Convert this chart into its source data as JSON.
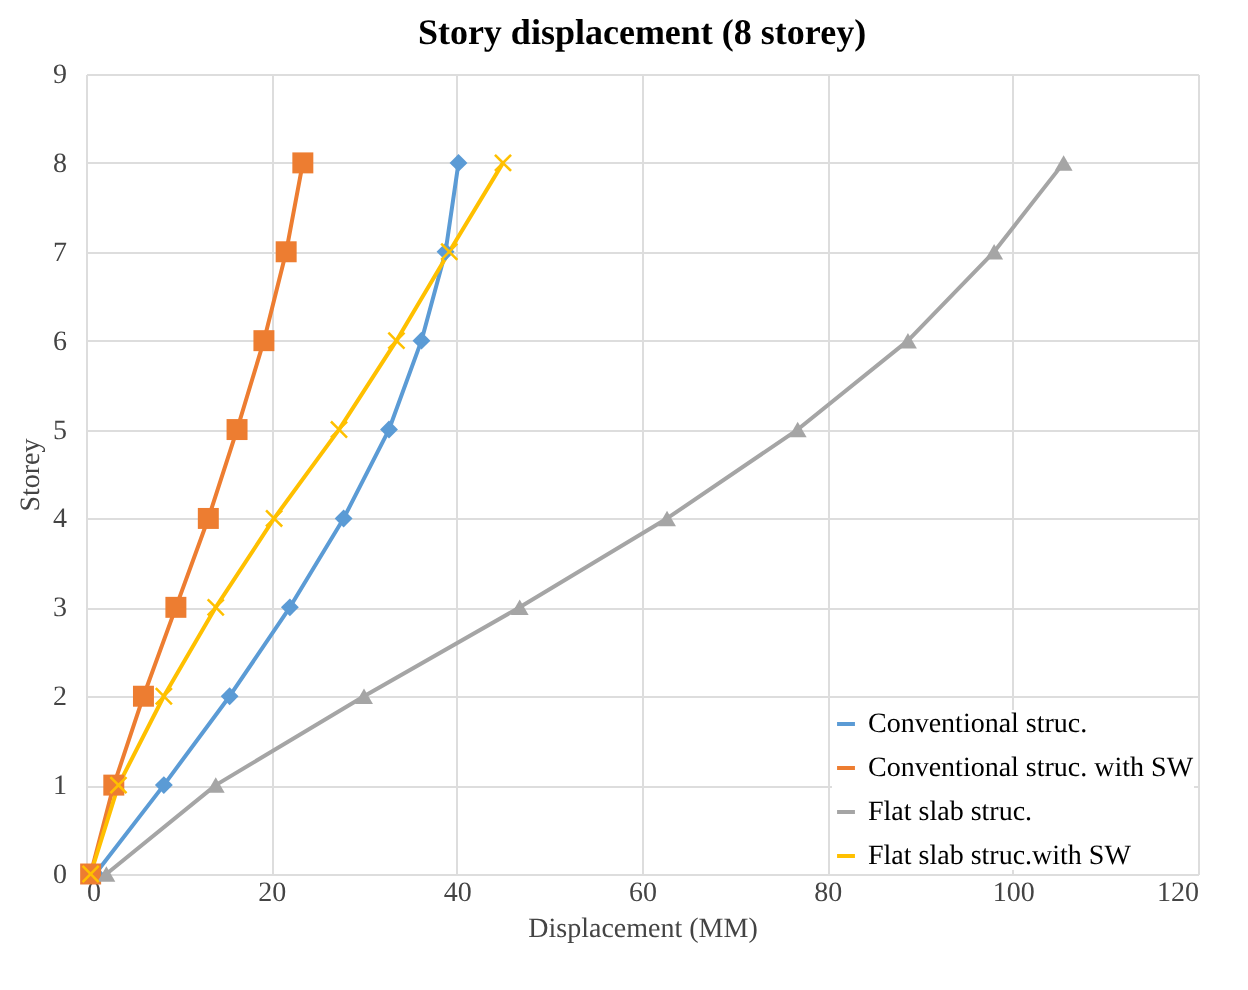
{
  "chart_data": {
    "type": "line",
    "title": "Story displacement (8 storey)",
    "xlabel": "Displacement (MM)",
    "ylabel": "Storey",
    "xlim": [
      0,
      120
    ],
    "xticks": [
      0,
      20,
      40,
      60,
      80,
      100,
      120
    ],
    "ylim": [
      0,
      9
    ],
    "yticks": [
      0,
      1,
      2,
      3,
      4,
      5,
      6,
      7,
      8,
      9
    ],
    "grid": true,
    "legend": "bottom right",
    "series": [
      {
        "name": "Conventional struc.",
        "color": "#5b9bd5",
        "marker": "diamond",
        "x": [
          1,
          8.4,
          15.5,
          22,
          27.8,
          32.7,
          36.2,
          38.8,
          40.2
        ],
        "values": [
          0,
          1,
          2,
          3,
          4,
          5,
          6,
          7,
          8
        ]
      },
      {
        "name": "Conventional struc. with SW",
        "color": "#ed7d31",
        "marker": "square",
        "x": [
          0.5,
          3,
          6.2,
          9.7,
          13.2,
          16.3,
          19.2,
          21.6,
          23.4
        ],
        "values": [
          0,
          1,
          2,
          3,
          4,
          5,
          6,
          7,
          8
        ]
      },
      {
        "name": "Flat slab struc.",
        "color": "#a5a5a5",
        "marker": "triangle",
        "x": [
          2.2,
          14,
          30,
          46.8,
          62.7,
          76.8,
          88.7,
          98,
          105.5
        ],
        "values": [
          0,
          1,
          2,
          3,
          4,
          5,
          6,
          7,
          8
        ]
      },
      {
        "name": "Flat slab struc.with SW",
        "color": "#ffc000",
        "marker": "cross",
        "x": [
          0.5,
          3.5,
          8.4,
          14,
          20.3,
          27.3,
          33.5,
          39.2,
          45
        ],
        "values": [
          0,
          1,
          2,
          3,
          4,
          5,
          6,
          7,
          8
        ]
      }
    ]
  }
}
